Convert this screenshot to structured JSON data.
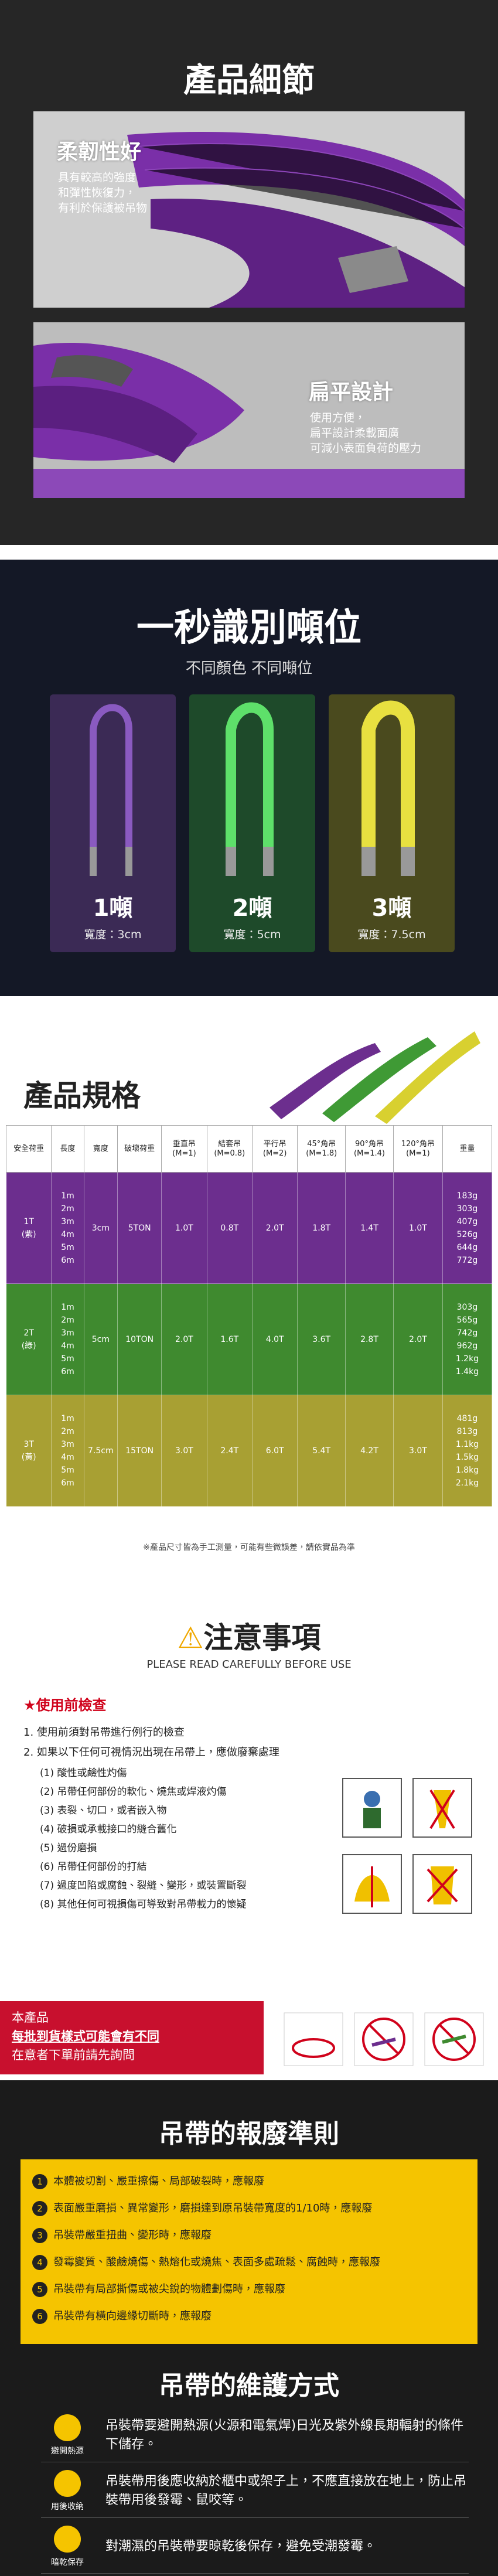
{
  "details": {
    "title": "產品細節",
    "features": [
      {
        "title": "柔韌性好",
        "lines": [
          "具有較高的強度",
          "和彈性恢復力，",
          "有利於保護被吊物"
        ]
      },
      {
        "title": "扁平設計",
        "lines": [
          "使用方便，",
          "扁平設計柔載面廣",
          "可減小表面負荷的壓力"
        ]
      }
    ]
  },
  "tonnage": {
    "title": "一秒識別噸位",
    "subtitle": "不同顏色 不同噸位",
    "cards": [
      {
        "label": "1噸",
        "width": "寬度：3cm"
      },
      {
        "label": "2噸",
        "width": "寬度：5cm"
      },
      {
        "label": "3噸",
        "width": "寬度：7.5cm"
      }
    ]
  },
  "spec": {
    "title": "產品規格",
    "headers": [
      {
        "name": "安全荷重"
      },
      {
        "name": "長度"
      },
      {
        "name": "寬度"
      },
      {
        "name": "破壞荷重"
      },
      {
        "name": "垂直吊",
        "m": "(M=1)"
      },
      {
        "name": "結套吊",
        "m": "(M=0.8)"
      },
      {
        "name": "平行吊",
        "m": "(M=2)"
      },
      {
        "name": "45°角吊",
        "m": "(M=1.8)"
      },
      {
        "name": "90°角吊",
        "m": "(M=1.4)"
      },
      {
        "name": "120°角吊",
        "m": "(M=1)"
      },
      {
        "name": "重量"
      }
    ],
    "rows": [
      {
        "load": "1T",
        "color": "(紫)",
        "lengths": [
          "1m",
          "2m",
          "3m",
          "4m",
          "5m",
          "6m"
        ],
        "width": "3cm",
        "break": "5TON",
        "ratings": [
          "1.0T",
          "0.8T",
          "2.0T",
          "1.8T",
          "1.4T",
          "1.0T"
        ],
        "weights": [
          "183g",
          "303g",
          "407g",
          "526g",
          "644g",
          "772g"
        ]
      },
      {
        "load": "2T",
        "color": "(綠)",
        "lengths": [
          "1m",
          "2m",
          "3m",
          "4m",
          "5m",
          "6m"
        ],
        "width": "5cm",
        "break": "10TON",
        "ratings": [
          "2.0T",
          "1.6T",
          "4.0T",
          "3.6T",
          "2.8T",
          "2.0T"
        ],
        "weights": [
          "303g",
          "565g",
          "742g",
          "962g",
          "1.2kg",
          "1.4kg"
        ]
      },
      {
        "load": "3T",
        "color": "(黃)",
        "lengths": [
          "1m",
          "2m",
          "3m",
          "4m",
          "5m",
          "6m"
        ],
        "width": "7.5cm",
        "break": "15TON",
        "ratings": [
          "3.0T",
          "2.4T",
          "6.0T",
          "5.4T",
          "4.2T",
          "3.0T"
        ],
        "weights": [
          "481g",
          "813g",
          "1.1kg",
          "1.5kg",
          "1.8kg",
          "2.1kg"
        ]
      }
    ],
    "note": "※產品尺寸皆為手工測量，可能有些微誤差，請依實品為準"
  },
  "notice": {
    "title": "注意事項",
    "subtitle": "PLEASE READ CAREFULLY BEFORE USE",
    "section": "★使用前檢查",
    "steps": [
      "1.  使用前須對吊帶進行例行的檢查",
      "2.  如果以下任何可視情況出現在吊帶上，應做廢棄處理"
    ],
    "items": [
      "(1)  酸性或鹼性灼傷",
      "(2)  吊帶任何部份的軟化、燒焦或焊液灼傷",
      "(3)  表裂、切口，或者嵌入物",
      "(4)  破損或承載接口的縫合舊化",
      "(5)  過份磨損",
      "(6)  吊帶任何部份的打結",
      "(7)  過度凹陷或腐蝕、裂縫、變形，或裝置斷裂",
      "(8)  其他任何可視損傷可導致對吊帶載力的懷疑"
    ],
    "warning": [
      "本產品",
      "每批到貨樣式可能會有不同",
      "在意者下單前請先詢問"
    ]
  },
  "scrap": {
    "title": "吊帶的報廢準則",
    "items": [
      {
        "no": "1",
        "text": "本體被切割、嚴重擦傷、局部破裂時，應報廢"
      },
      {
        "no": "2",
        "text": "表面嚴重磨損、異常變形，磨損達到原吊裝帶寬度的1/10時，應報廢"
      },
      {
        "no": "3",
        "text": "吊裝帶嚴重扭曲、變形時，應報廢"
      },
      {
        "no": "4",
        "text": "發霉變質、酸鹼燒傷、熱熔化或燒焦、表面多處疏鬆、腐蝕時，應報廢"
      },
      {
        "no": "5",
        "text": "吊裝帶有局部撕傷或被尖銳的物體劃傷時，應報廢"
      },
      {
        "no": "6",
        "text": "吊裝帶有橫向邊緣切斷時，應報廢"
      }
    ]
  },
  "care": {
    "title": "吊帶的維護方式",
    "items": [
      {
        "label": "避開熱源",
        "text": "吊裝帶要避開熱源(火源和電氣焊)日光及紫外線長期輻射的條件下儲存。"
      },
      {
        "label": "用後收納",
        "text": "吊裝帶用後應收納於櫃中或架子上，不應直接放在地上，防止吊裝帶用後發霉、鼠咬等。"
      },
      {
        "label": "暗乾保存",
        "text": "對潮濕的吊裝帶要晾乾後保存，避免受潮發霉。"
      }
    ]
  }
}
